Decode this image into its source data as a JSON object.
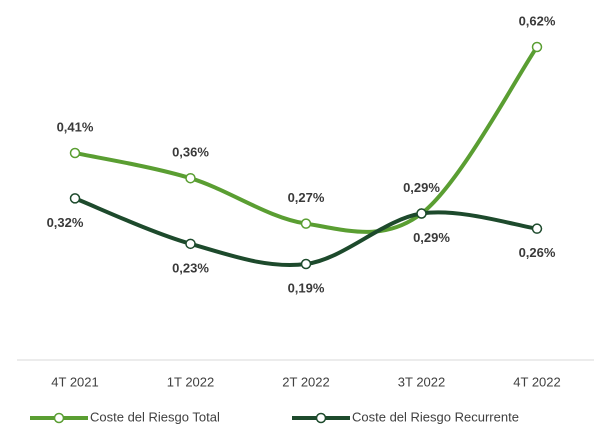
{
  "chart_data": {
    "type": "line",
    "categories": [
      "4T 2021",
      "1T 2022",
      "2T 2022",
      "3T 2022",
      "4T 2022"
    ],
    "series": [
      {
        "name": "Coste del Riesgo Total",
        "color": "#5a9e32",
        "values": [
          0.41,
          0.36,
          0.27,
          0.29,
          0.62
        ],
        "value_labels": [
          "0,41%",
          "0,36%",
          "0,27%",
          "0,29%",
          "0,62%"
        ]
      },
      {
        "name": "Coste del Riesgo Recurrente",
        "color": "#1d4a2c",
        "values": [
          0.32,
          0.23,
          0.19,
          0.29,
          0.26
        ],
        "value_labels": [
          "0,32%",
          "0,23%",
          "0,19%",
          "0,29%",
          "0,26%"
        ]
      }
    ],
    "legend": "bottom"
  }
}
